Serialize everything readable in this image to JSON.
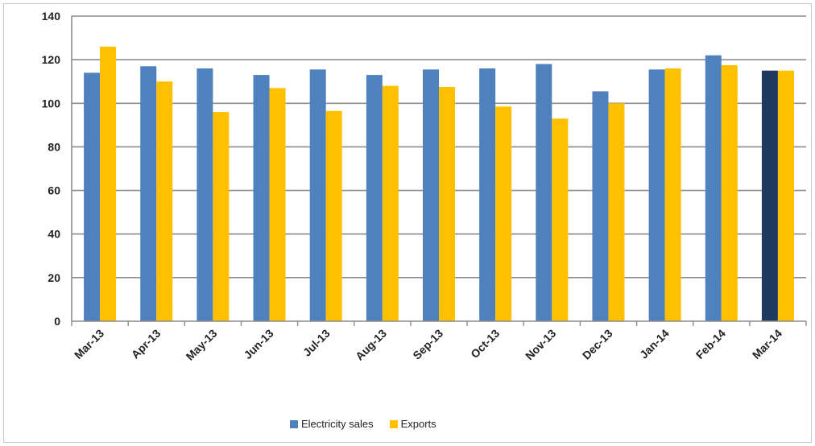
{
  "chart_data": {
    "type": "bar",
    "title": "",
    "xlabel": "",
    "ylabel": "",
    "ylim": [
      0,
      140
    ],
    "yticks": [
      0,
      20,
      40,
      60,
      80,
      100,
      120,
      140
    ],
    "grid": true,
    "legend_position": "bottom",
    "categories": [
      "Mar-13",
      "Apr-13",
      "May-13",
      "Jun-13",
      "Jul-13",
      "Aug-13",
      "Sep-13",
      "Oct-13",
      "Nov-13",
      "Dec-13",
      "Jan-14",
      "Feb-14",
      "Mar-14"
    ],
    "series": [
      {
        "name": "Electricity sales",
        "color": "#4f81bd",
        "highlight_last_color": "#1f3a5f",
        "values": [
          114,
          117,
          116,
          113,
          115.5,
          113,
          115.5,
          116,
          118,
          105.5,
          115.5,
          122,
          115
        ]
      },
      {
        "name": "Exports",
        "color": "#ffc000",
        "values": [
          126,
          110,
          96,
          107,
          96.5,
          108,
          107.5,
          98.5,
          93,
          100,
          116,
          117.5,
          115
        ]
      }
    ]
  }
}
